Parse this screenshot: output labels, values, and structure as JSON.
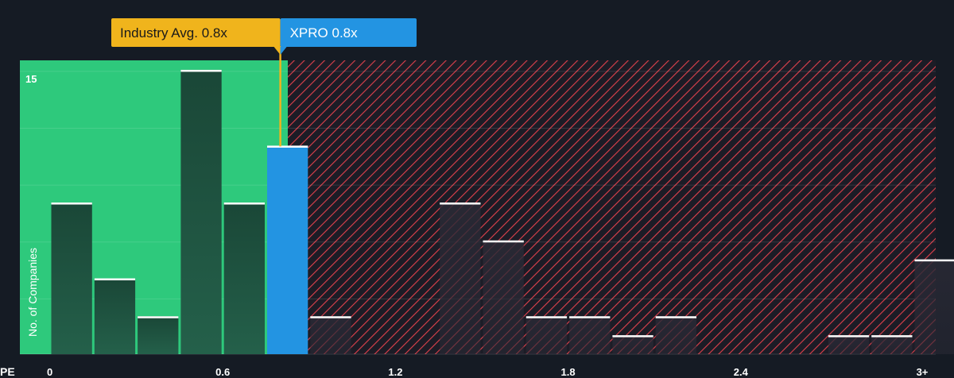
{
  "chart_data": {
    "type": "bar",
    "title": "",
    "xlabel": "PE",
    "ylabel": "No. of Companies",
    "x_ticks": [
      "0",
      "0.6",
      "1.2",
      "1.8",
      "2.4",
      "3+"
    ],
    "x_tick_values": [
      0,
      0.6,
      1.2,
      1.8,
      2.4,
      3
    ],
    "y_ticks": [
      "15"
    ],
    "y_tick_values": [
      15
    ],
    "ylim": [
      0,
      15.5
    ],
    "bin_width": 0.15,
    "bins": [
      {
        "start": 0.0,
        "value": 8
      },
      {
        "start": 0.15,
        "value": 4
      },
      {
        "start": 0.3,
        "value": 2
      },
      {
        "start": 0.45,
        "value": 15
      },
      {
        "start": 0.6,
        "value": 8
      },
      {
        "start": 0.75,
        "value": 11,
        "highlight": true
      },
      {
        "start": 0.9,
        "value": 2
      },
      {
        "start": 1.05,
        "value": 0
      },
      {
        "start": 1.2,
        "value": 0
      },
      {
        "start": 1.35,
        "value": 8
      },
      {
        "start": 1.5,
        "value": 6
      },
      {
        "start": 1.65,
        "value": 2
      },
      {
        "start": 1.8,
        "value": 2
      },
      {
        "start": 1.95,
        "value": 1
      },
      {
        "start": 2.1,
        "value": 2
      },
      {
        "start": 2.25,
        "value": 0
      },
      {
        "start": 2.4,
        "value": 0
      },
      {
        "start": 2.55,
        "value": 0
      },
      {
        "start": 2.7,
        "value": 1
      },
      {
        "start": 2.85,
        "value": 1
      },
      {
        "start": 3.0,
        "value": 5
      }
    ],
    "industry_avg": {
      "label": "Industry Avg. 0.8x",
      "value": 0.8
    },
    "company": {
      "label": "XPRO 0.8x",
      "value": 0.8
    },
    "colors": {
      "background": "#151b24",
      "below_zone": "#2ec97c",
      "above_zone_stripe": "#e0414c",
      "bar_normal": "#1e4a3a",
      "bar_highlight": "#2394e2",
      "bar_cap": "#ffffff",
      "industry_label": "#f0b41c",
      "company_label": "#2394e2",
      "text": "#ffffff"
    }
  }
}
